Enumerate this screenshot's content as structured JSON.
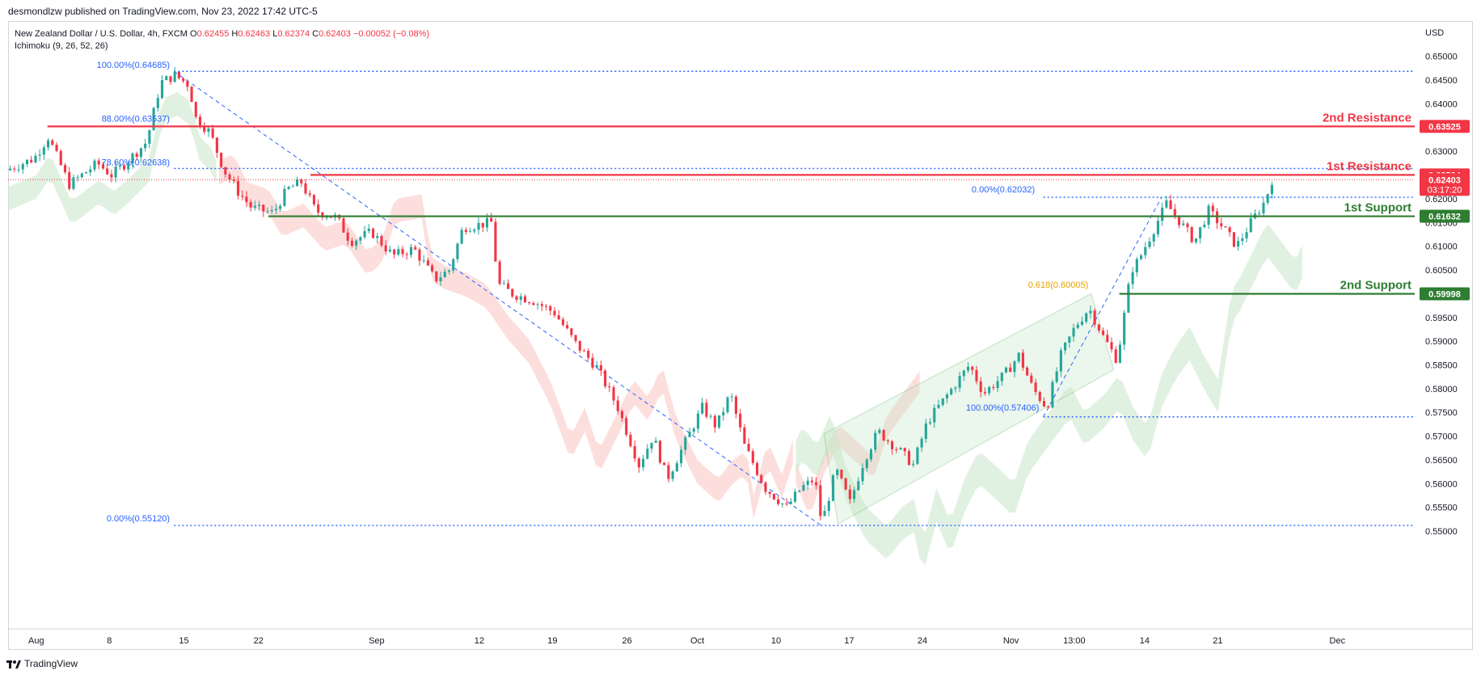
{
  "header": {
    "publisher_line": "desmondlzw published on TradingView.com, Nov 23, 2022 17:42 UTC-5"
  },
  "legend": {
    "symbol": "New Zealand Dollar / U.S. Dollar, 4h, FXCM",
    "o_label": "O",
    "open": "0.62455",
    "h_label": "H",
    "high": "0.62463",
    "l_label": "L",
    "low": "0.62374",
    "c_label": "C",
    "close": "0.62403",
    "change": "−0.00052 (−0.08%)",
    "indicator": "Ichimoku (9, 26, 52, 26)"
  },
  "footer": {
    "brand": "TradingView"
  },
  "colors": {
    "up": "#26a69a",
    "down": "#f23645",
    "fib": "#2962ff",
    "resistance": "#f23645",
    "support": "#2e7d32",
    "golden": "#e6a100",
    "cloud_bear": "#f9c4c1",
    "cloud_bull": "#c8e6c9",
    "channel": "#4caf50"
  },
  "chart_data": {
    "type": "candlestick",
    "title": "New Zealand Dollar / U.S. Dollar, 4h, FXCM",
    "currency": "USD",
    "timeframe": "4h",
    "ylim": [
      0.5495,
      0.652
    ],
    "y_ticks": [
      "0.65000",
      "0.64500",
      "0.64000",
      "0.63500",
      "0.63000",
      "0.62500",
      "0.62000",
      "0.61500",
      "0.61000",
      "0.60500",
      "0.60000",
      "0.59500",
      "0.59000",
      "0.58500",
      "0.58000",
      "0.57500",
      "0.57000",
      "0.56500",
      "0.56000",
      "0.55500",
      "0.55000"
    ],
    "x_ticks": [
      {
        "label": "Aug",
        "pos": 0.02
      },
      {
        "label": "8",
        "pos": 0.072
      },
      {
        "label": "15",
        "pos": 0.125
      },
      {
        "label": "22",
        "pos": 0.178
      },
      {
        "label": "Sep",
        "pos": 0.262
      },
      {
        "label": "12",
        "pos": 0.335
      },
      {
        "label": "19",
        "pos": 0.387
      },
      {
        "label": "26",
        "pos": 0.44
      },
      {
        "label": "Oct",
        "pos": 0.49
      },
      {
        "label": "10",
        "pos": 0.546
      },
      {
        "label": "17",
        "pos": 0.598
      },
      {
        "label": "24",
        "pos": 0.65
      },
      {
        "label": "Nov",
        "pos": 0.713
      },
      {
        "label": "13:00",
        "pos": 0.758
      },
      {
        "label": "14",
        "pos": 0.808
      },
      {
        "label": "21",
        "pos": 0.86
      },
      {
        "label": "Dec",
        "pos": 0.945
      }
    ],
    "price_path": [
      [
        0.0,
        0.626
      ],
      [
        0.02,
        0.6285
      ],
      [
        0.03,
        0.633
      ],
      [
        0.045,
        0.623
      ],
      [
        0.065,
        0.6275
      ],
      [
        0.075,
        0.625
      ],
      [
        0.085,
        0.6275
      ],
      [
        0.1,
        0.632
      ],
      [
        0.11,
        0.6445
      ],
      [
        0.12,
        0.646
      ],
      [
        0.13,
        0.644
      ],
      [
        0.135,
        0.637
      ],
      [
        0.145,
        0.634
      ],
      [
        0.155,
        0.626
      ],
      [
        0.165,
        0.6215
      ],
      [
        0.175,
        0.618
      ],
      [
        0.19,
        0.617
      ],
      [
        0.2,
        0.622
      ],
      [
        0.21,
        0.6235
      ],
      [
        0.22,
        0.6175
      ],
      [
        0.235,
        0.616
      ],
      [
        0.245,
        0.611
      ],
      [
        0.26,
        0.613
      ],
      [
        0.275,
        0.608
      ],
      [
        0.29,
        0.6095
      ],
      [
        0.305,
        0.603
      ],
      [
        0.315,
        0.605
      ],
      [
        0.325,
        0.614
      ],
      [
        0.345,
        0.615
      ],
      [
        0.35,
        0.602
      ],
      [
        0.36,
        0.6
      ],
      [
        0.375,
        0.5985
      ],
      [
        0.39,
        0.596
      ],
      [
        0.405,
        0.5895
      ],
      [
        0.42,
        0.5845
      ],
      [
        0.435,
        0.576
      ],
      [
        0.45,
        0.564
      ],
      [
        0.46,
        0.57
      ],
      [
        0.47,
        0.561
      ],
      [
        0.485,
        0.57
      ],
      [
        0.495,
        0.576
      ],
      [
        0.505,
        0.572
      ],
      [
        0.515,
        0.579
      ],
      [
        0.525,
        0.568
      ],
      [
        0.54,
        0.559
      ],
      [
        0.555,
        0.555
      ],
      [
        0.565,
        0.559
      ],
      [
        0.575,
        0.561
      ],
      [
        0.58,
        0.5515
      ],
      [
        0.59,
        0.563
      ],
      [
        0.6,
        0.556
      ],
      [
        0.61,
        0.565
      ],
      [
        0.62,
        0.571
      ],
      [
        0.635,
        0.567
      ],
      [
        0.645,
        0.564
      ],
      [
        0.655,
        0.573
      ],
      [
        0.67,
        0.579
      ],
      [
        0.685,
        0.585
      ],
      [
        0.695,
        0.579
      ],
      [
        0.71,
        0.583
      ],
      [
        0.72,
        0.587
      ],
      [
        0.73,
        0.58
      ],
      [
        0.74,
        0.576
      ],
      [
        0.75,
        0.587
      ],
      [
        0.76,
        0.593
      ],
      [
        0.77,
        0.597
      ],
      [
        0.78,
        0.591
      ],
      [
        0.79,
        0.586
      ],
      [
        0.8,
        0.605
      ],
      [
        0.805,
        0.607
      ],
      [
        0.81,
        0.61
      ],
      [
        0.825,
        0.619
      ],
      [
        0.835,
        0.615
      ],
      [
        0.845,
        0.611
      ],
      [
        0.855,
        0.6175
      ],
      [
        0.865,
        0.614
      ],
      [
        0.875,
        0.61
      ],
      [
        0.885,
        0.615
      ],
      [
        0.895,
        0.6195
      ],
      [
        0.9,
        0.624
      ]
    ],
    "levels": [
      {
        "name": "2nd Resistance",
        "price": 0.63525,
        "label": "0.63525",
        "kind": "resistance"
      },
      {
        "name": "1st Resistance",
        "price": 0.62504,
        "label": "0.62504",
        "kind": "resistance"
      },
      {
        "name": "1st Support",
        "price": 0.61632,
        "label": "0.61632",
        "kind": "support"
      },
      {
        "name": "2nd Support",
        "price": 0.59998,
        "label": "0.59998",
        "kind": "support"
      }
    ],
    "current_price": {
      "label": "0.62403",
      "price": 0.62403,
      "countdown": "03:17:20"
    },
    "fib_labels": [
      {
        "text": "100.00%(0.64685)",
        "price": 0.64685
      },
      {
        "text": "88.00%(0.63537)",
        "price": 0.63537
      },
      {
        "text": "78.60%(0.62638)",
        "price": 0.62638
      },
      {
        "text": "0.00%(0.55120)",
        "price": 0.5512
      },
      {
        "text": "0.00%(0.62032)",
        "price": 0.62032
      },
      {
        "text": "100.00%(0.57406)",
        "price": 0.57406
      },
      {
        "text": "0.618(0.60005)",
        "price": 0.60005
      }
    ],
    "annotations": [
      "2nd Resistance",
      "1st Resistance",
      "1st Support",
      "2nd Support"
    ],
    "grid": false,
    "legend_position": "top-left"
  }
}
